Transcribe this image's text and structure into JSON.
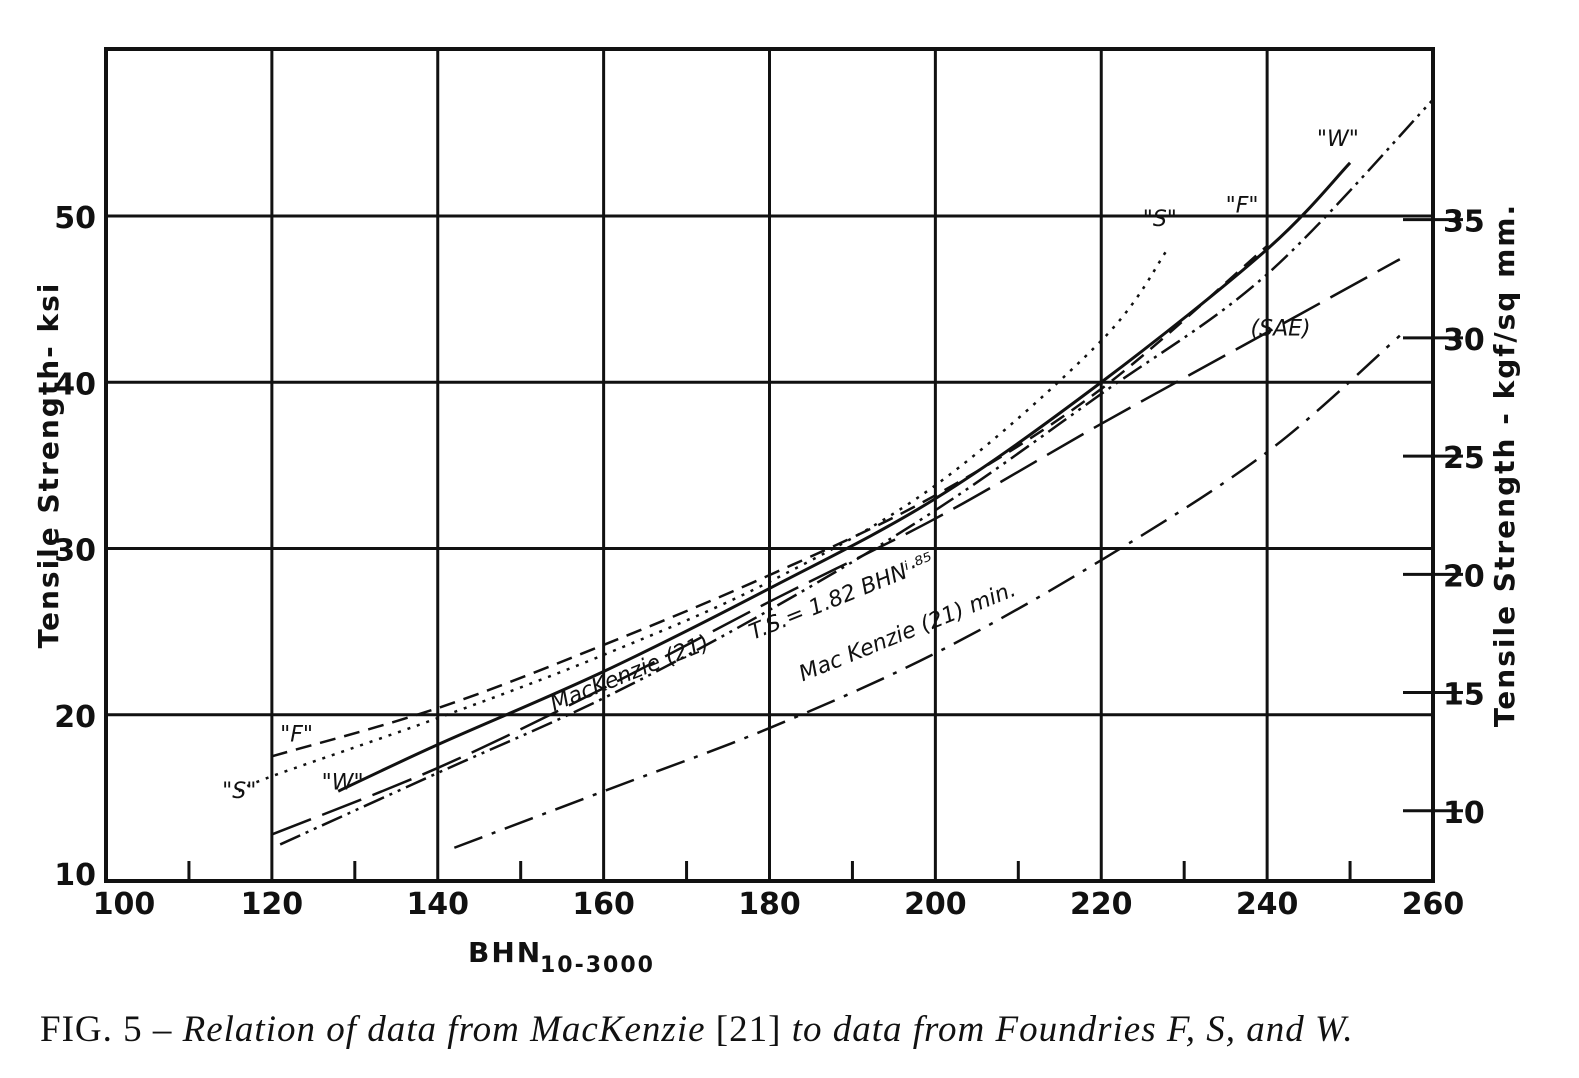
{
  "chart_data": {
    "type": "line",
    "xlabel": "BHN",
    "xlabel_subscript": "10-3000",
    "ylabel": "Tensile   Strength- ksi",
    "ylabel_right": "Tensile Strength - kgf/sq mm.",
    "xlim": [
      100,
      260
    ],
    "ylim": [
      10,
      60
    ],
    "x_ticks": [
      "100",
      "120",
      "140",
      "160",
      "180",
      "200",
      "220",
      "240",
      "260"
    ],
    "y_ticks": [
      "10",
      "20",
      "30",
      "40",
      "50"
    ],
    "y_right_ticks": [
      "10",
      "15",
      "20",
      "25",
      "30",
      "35"
    ],
    "grid": true,
    "series": [
      {
        "name": "\"W\"",
        "style": "solid",
        "x": [
          128,
          140,
          160,
          180,
          200,
          220,
          240,
          250
        ],
        "y": [
          15.4,
          18.2,
          22.6,
          27.6,
          33.0,
          40.0,
          48.0,
          53.2
        ]
      },
      {
        "name": "\"F\"",
        "style": "dashed",
        "x": [
          120,
          140,
          160,
          180,
          200,
          220,
          240
        ],
        "y": [
          17.5,
          20.4,
          24.2,
          28.4,
          33.2,
          39.6,
          48.2
        ]
      },
      {
        "name": "\"S\"",
        "style": "dotted",
        "x": [
          116,
          120,
          140,
          160,
          180,
          200,
          220,
          228
        ],
        "y": [
          15.4,
          16.3,
          19.8,
          23.6,
          28.0,
          33.8,
          42.5,
          48.0
        ]
      },
      {
        "name": "",
        "style": "dash-dot-dot",
        "x": [
          121,
          140,
          160,
          180,
          200,
          220,
          240,
          260
        ],
        "y": [
          12.2,
          16.5,
          21.0,
          26.3,
          32.3,
          39.3,
          46.5,
          57.0
        ]
      },
      {
        "name": "(SAE)",
        "style": "long-dash",
        "x": [
          120,
          140,
          160,
          180,
          200,
          220,
          240,
          256
        ],
        "y": [
          12.8,
          16.8,
          21.6,
          26.8,
          31.8,
          37.5,
          43.0,
          47.4
        ]
      },
      {
        "name": "",
        "style": "dash-dot",
        "x": [
          142,
          160,
          180,
          200,
          220,
          240,
          256
        ],
        "y": [
          12.0,
          15.4,
          19.2,
          23.7,
          29.3,
          35.8,
          42.8
        ]
      }
    ],
    "annotations": [
      {
        "text": "\"F\"",
        "x": 121,
        "y": 18.4
      },
      {
        "text": "\"S\"",
        "x": 114,
        "y": 15.0
      },
      {
        "text": "\"W\"",
        "x": 126,
        "y": 15.5
      },
      {
        "text": "\"S\"",
        "x": 225,
        "y": 49.4
      },
      {
        "text": "\"F\"",
        "x": 235,
        "y": 50.2
      },
      {
        "text": "\"W\"",
        "x": 246,
        "y": 54.2
      },
      {
        "text": "(SAE)",
        "x": 238,
        "y": 42.8
      },
      {
        "text": "MacKenzie (21)",
        "x": 154,
        "y": 20.2
      },
      {
        "text": "T.S.= 1.82 BHNⁱ·⁸⁵",
        "x": 178,
        "y": 24.5
      },
      {
        "text": "Mac Kenzie (21) min.",
        "x": 184,
        "y": 22.0
      }
    ]
  },
  "caption": {
    "prefix": "FIG. 5 – ",
    "body": "Relation of data from MacKenzie ",
    "ref": "[21]",
    "suffix": " to data from Foundries F, S, and W."
  }
}
